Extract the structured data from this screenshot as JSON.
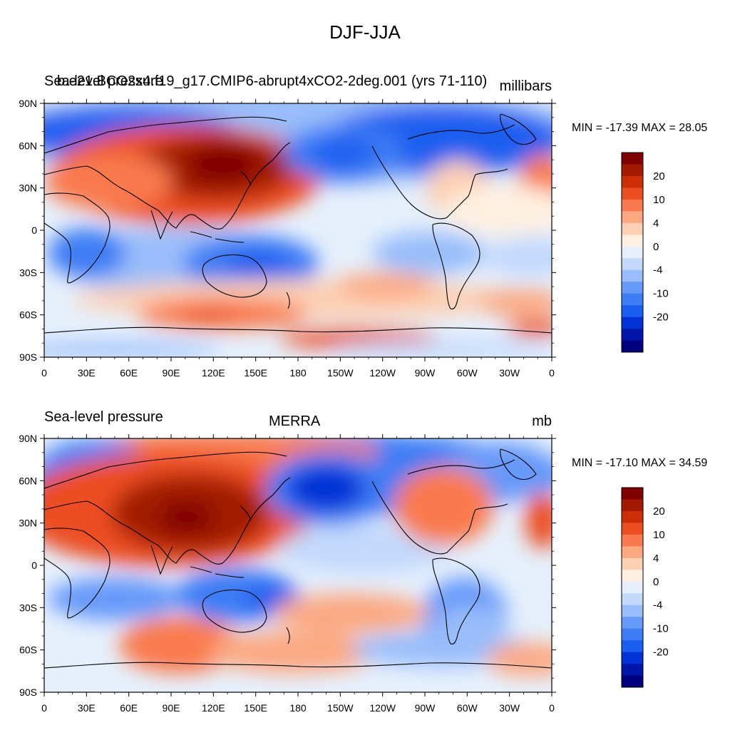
{
  "page_title": "DJF-JJA",
  "colorbar": {
    "colors": [
      "#00007f",
      "#0016a8",
      "#0033d6",
      "#1a5ef0",
      "#3d7df5",
      "#6699fa",
      "#99bdfa",
      "#c2d9fc",
      "#e6f0fc",
      "#fff0e0",
      "#fdd0b3",
      "#fca982",
      "#f97a4e",
      "#ec4e22",
      "#cd2e08",
      "#a31a00",
      "#800000"
    ],
    "labels": [
      "-20",
      "-10",
      "-4",
      "0",
      "4",
      "10",
      "20"
    ]
  },
  "axes": {
    "y_ticks": [
      "90N",
      "60N",
      "30N",
      "0",
      "30S",
      "60S",
      "90S"
    ],
    "x_ticks": [
      "0",
      "30E",
      "60E",
      "90E",
      "120E",
      "150E",
      "180",
      "150W",
      "120W",
      "90W",
      "60W",
      "30W",
      "0"
    ]
  },
  "panels": [
    {
      "left_title": "Sea-level pressure",
      "overlap_title": "b.e21.BCO2x4.f19_g17.CMIP6-abrupt4xCO2-2deg.001 (yrs 71-110)",
      "center_title": "",
      "units": "millibars",
      "min_max": "MIN = -17.39 MAX =  28.05"
    },
    {
      "left_title": "Sea-level pressure",
      "overlap_title": "",
      "center_title": "MERRA",
      "units": "mb",
      "min_max": "MIN = -17.10 MAX =  34.59"
    }
  ]
}
